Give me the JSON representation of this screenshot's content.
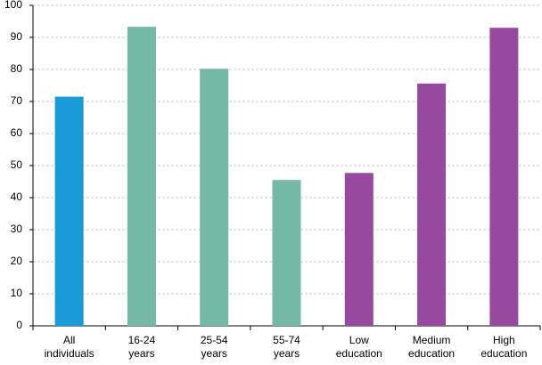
{
  "chart_data": {
    "type": "bar",
    "categories": [
      [
        "All",
        "individuals"
      ],
      [
        "16-24",
        "years"
      ],
      [
        "25-54",
        "years"
      ],
      [
        "55-74",
        "years"
      ],
      [
        "Low",
        "education"
      ],
      [
        "Medium",
        "education"
      ],
      [
        "High",
        "education"
      ]
    ],
    "values": [
      71.5,
      93.3,
      80.2,
      45.5,
      47.7,
      75.6,
      93.0
    ],
    "colors": [
      "#1a9bd7",
      "#73b9a5",
      "#73b9a5",
      "#73b9a5",
      "#954a9f",
      "#954a9f",
      "#954a9f"
    ],
    "ylim": [
      0,
      100
    ],
    "yticks": [
      0,
      10,
      20,
      30,
      40,
      50,
      60,
      70,
      80,
      90,
      100
    ],
    "grid": true
  }
}
